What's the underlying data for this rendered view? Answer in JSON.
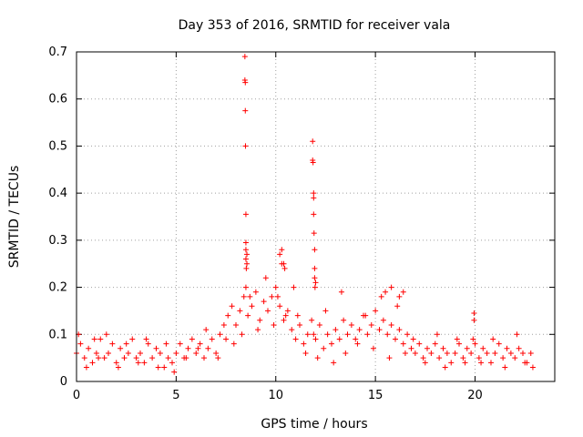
{
  "chart_data": {
    "type": "scatter",
    "title": "Day 353 of 2016, SRMTID for receiver vala",
    "xlabel": "GPS time / hours",
    "ylabel": "SRMTID / TECUs",
    "xlim": [
      0,
      24
    ],
    "ylim": [
      0,
      0.7
    ],
    "xticks": [
      "0",
      "5",
      "10",
      "15",
      "20"
    ],
    "yticks": [
      "0",
      "0.1",
      "0.2",
      "0.3",
      "0.4",
      "0.5",
      "0.6",
      "0.7"
    ],
    "grid": true,
    "marker": "plus",
    "marker_color": "#ff0000",
    "series": [
      {
        "name": "SRMTID",
        "x": [
          0.0,
          0.2,
          0.4,
          0.6,
          0.8,
          1.0,
          1.2,
          1.4,
          1.6,
          1.8,
          2.0,
          2.2,
          2.4,
          2.6,
          2.8,
          3.0,
          3.2,
          3.4,
          3.6,
          3.8,
          4.0,
          4.2,
          4.4,
          4.6,
          4.8,
          5.0,
          5.2,
          5.4,
          5.6,
          5.8,
          6.0,
          6.2,
          6.4,
          6.6,
          6.8,
          7.0,
          7.2,
          7.4,
          7.6,
          7.8,
          8.0,
          8.2,
          8.4,
          8.6,
          8.8,
          9.0,
          9.2,
          9.4,
          9.6,
          9.8,
          10.0,
          10.2,
          10.4,
          10.6,
          10.8,
          11.0,
          11.2,
          11.4,
          11.6,
          11.8,
          12.0,
          12.2,
          12.4,
          12.6,
          12.8,
          13.0,
          13.2,
          13.4,
          13.6,
          13.8,
          14.0,
          14.2,
          14.4,
          14.6,
          14.8,
          15.0,
          15.2,
          15.4,
          15.6,
          15.8,
          16.0,
          16.2,
          16.4,
          16.6,
          16.8,
          17.0,
          17.2,
          17.4,
          17.6,
          17.8,
          18.0,
          18.2,
          18.4,
          18.6,
          18.8,
          19.0,
          19.2,
          19.4,
          19.6,
          19.8,
          20.0,
          20.2,
          20.4,
          20.6,
          20.8,
          21.0,
          21.2,
          21.4,
          21.6,
          21.8,
          22.0,
          22.2,
          22.4,
          22.6,
          22.8,
          0.1,
          0.5,
          0.9,
          1.1,
          1.5,
          2.1,
          2.5,
          3.1,
          3.5,
          4.1,
          4.5,
          4.9,
          5.5,
          6.1,
          6.5,
          7.1,
          7.5,
          7.9,
          8.3,
          8.5,
          8.7,
          9.1,
          9.5,
          9.9,
          10.1,
          10.3,
          10.5,
          10.9,
          11.1,
          11.5,
          11.9,
          12.1,
          12.5,
          12.9,
          13.5,
          14.1,
          14.5,
          14.9,
          15.3,
          15.7,
          16.1,
          16.5,
          16.9,
          17.5,
          18.1,
          18.5,
          19.1,
          19.5,
          19.9,
          20.3,
          20.9,
          21.5,
          22.1,
          22.5,
          22.9,
          8.45,
          8.45,
          8.47,
          8.47,
          8.48,
          8.5,
          8.5,
          8.5,
          8.5,
          8.52,
          8.55,
          8.55,
          11.85,
          11.85,
          11.87,
          11.9,
          11.9,
          11.9,
          11.92,
          11.95,
          11.95,
          11.95,
          11.97,
          12.0,
          19.95,
          19.95,
          10.2,
          10.3,
          10.4,
          10.45,
          13.3,
          15.5,
          15.8,
          16.4,
          16.2
        ],
        "y": [
          0.06,
          0.08,
          0.05,
          0.07,
          0.04,
          0.06,
          0.09,
          0.05,
          0.06,
          0.08,
          0.04,
          0.07,
          0.05,
          0.06,
          0.09,
          0.05,
          0.06,
          0.04,
          0.08,
          0.05,
          0.07,
          0.06,
          0.03,
          0.05,
          0.04,
          0.06,
          0.08,
          0.05,
          0.07,
          0.09,
          0.06,
          0.08,
          0.05,
          0.07,
          0.09,
          0.06,
          0.1,
          0.12,
          0.14,
          0.16,
          0.12,
          0.15,
          0.18,
          0.14,
          0.16,
          0.19,
          0.13,
          0.17,
          0.15,
          0.18,
          0.2,
          0.16,
          0.13,
          0.15,
          0.11,
          0.09,
          0.12,
          0.08,
          0.1,
          0.13,
          0.09,
          0.12,
          0.07,
          0.1,
          0.08,
          0.11,
          0.09,
          0.13,
          0.1,
          0.12,
          0.09,
          0.11,
          0.14,
          0.1,
          0.12,
          0.15,
          0.11,
          0.13,
          0.1,
          0.12,
          0.09,
          0.11,
          0.08,
          0.1,
          0.07,
          0.06,
          0.08,
          0.05,
          0.07,
          0.06,
          0.08,
          0.05,
          0.07,
          0.06,
          0.04,
          0.06,
          0.08,
          0.05,
          0.07,
          0.06,
          0.08,
          0.05,
          0.07,
          0.06,
          0.04,
          0.06,
          0.08,
          0.05,
          0.07,
          0.06,
          0.05,
          0.07,
          0.06,
          0.04,
          0.06,
          0.1,
          0.03,
          0.09,
          0.05,
          0.1,
          0.03,
          0.08,
          0.04,
          0.09,
          0.03,
          0.08,
          0.02,
          0.05,
          0.07,
          0.11,
          0.05,
          0.09,
          0.08,
          0.1,
          0.2,
          0.18,
          0.11,
          0.22,
          0.12,
          0.18,
          0.25,
          0.14,
          0.2,
          0.14,
          0.06,
          0.1,
          0.05,
          0.15,
          0.04,
          0.06,
          0.08,
          0.14,
          0.07,
          0.18,
          0.05,
          0.16,
          0.06,
          0.09,
          0.04,
          0.1,
          0.03,
          0.09,
          0.04,
          0.09,
          0.04,
          0.09,
          0.03,
          0.1,
          0.04,
          0.03,
          0.69,
          0.64,
          0.635,
          0.575,
          0.5,
          0.355,
          0.295,
          0.28,
          0.26,
          0.24,
          0.27,
          0.25,
          0.51,
          0.47,
          0.465,
          0.4,
          0.39,
          0.355,
          0.315,
          0.28,
          0.24,
          0.22,
          0.2,
          0.21,
          0.145,
          0.13,
          0.27,
          0.28,
          0.25,
          0.24,
          0.19,
          0.19,
          0.2,
          0.19,
          0.18
        ]
      }
    ]
  }
}
